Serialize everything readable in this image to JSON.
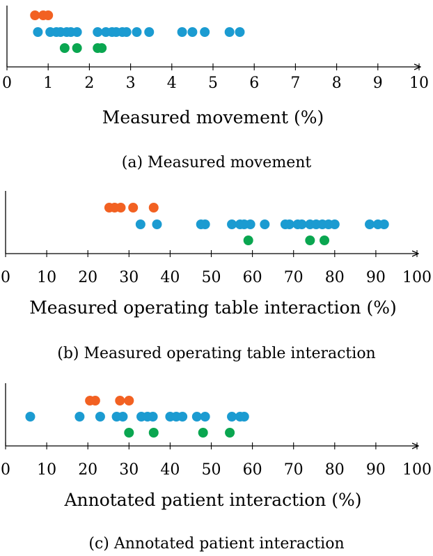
{
  "chart_data": [
    {
      "type": "scatter",
      "xlabel": "Measured movement (%)",
      "caption": "(a) Measured movement",
      "xlim": [
        0,
        10
      ],
      "xticks": [
        0,
        1,
        2,
        3,
        4,
        5,
        6,
        7,
        8,
        9,
        10
      ],
      "series": [
        {
          "name": "orange",
          "color": "#f26122",
          "values": [
            0.68,
            0.88,
            1.0
          ]
        },
        {
          "name": "blue",
          "color": "#1b9bd1",
          "values": [
            0.75,
            1.05,
            1.2,
            1.3,
            1.45,
            1.55,
            1.7,
            2.2,
            2.4,
            2.55,
            2.65,
            2.8,
            2.9,
            3.15,
            3.45,
            4.25,
            4.5,
            4.8,
            5.4,
            5.65
          ]
        },
        {
          "name": "green",
          "color": "#0aa650",
          "values": [
            1.4,
            1.7,
            2.2,
            2.3
          ]
        }
      ]
    },
    {
      "type": "scatter",
      "xlabel": "Measured operating table interaction (%)",
      "caption": "(b) Measured operating table interaction",
      "xlim": [
        0,
        100
      ],
      "xticks": [
        0,
        10,
        20,
        30,
        40,
        50,
        60,
        70,
        80,
        90,
        100
      ],
      "series": [
        {
          "name": "orange",
          "color": "#f26122",
          "values": [
            25.2,
            26.5,
            28.0,
            31.0,
            36.0
          ]
        },
        {
          "name": "blue",
          "color": "#1b9bd1",
          "values": [
            32.8,
            36.8,
            47.5,
            48.5,
            55.0,
            57.0,
            58.0,
            59.5,
            63.0,
            68.0,
            69.0,
            71.0,
            72.0,
            74.0,
            75.5,
            77.0,
            78.5,
            80.0,
            88.5,
            90.5,
            92.0
          ]
        },
        {
          "name": "green",
          "color": "#0aa650",
          "values": [
            59.0,
            74.0,
            77.5
          ]
        }
      ]
    },
    {
      "type": "scatter",
      "xlabel": "Annotated patient interaction (%)",
      "caption": "(c) Annotated patient interaction",
      "xlim": [
        0,
        100
      ],
      "xticks": [
        0,
        10,
        20,
        30,
        40,
        50,
        60,
        70,
        80,
        90,
        100
      ],
      "series": [
        {
          "name": "orange",
          "color": "#f26122",
          "values": [
            20.5,
            21.8,
            27.8,
            30.0
          ]
        },
        {
          "name": "blue",
          "color": "#1b9bd1",
          "values": [
            6.0,
            18.0,
            23.0,
            27.0,
            28.5,
            33.0,
            34.5,
            35.8,
            40.0,
            41.5,
            43.0,
            46.5,
            48.5,
            55.0,
            57.0,
            58.0
          ]
        },
        {
          "name": "green",
          "color": "#0aa650",
          "values": [
            30.0,
            36.0,
            48.0,
            54.5
          ]
        }
      ]
    }
  ]
}
